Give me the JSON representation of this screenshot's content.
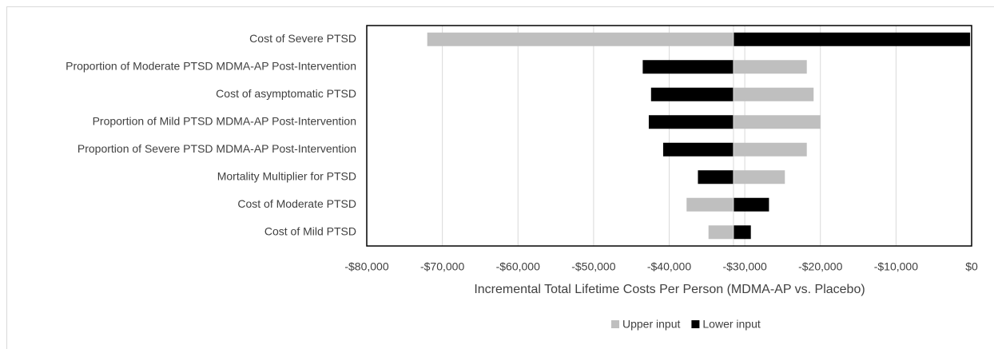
{
  "chart_data": {
    "type": "tornado",
    "x_label": "Incremental Total Lifetime Costs Per Person (MDMA-AP vs. Placebo)",
    "categories": [
      "Cost of Severe PTSD",
      "Proportion of Moderate PTSD MDMA-AP Post-Intervention",
      "Cost of asymptomatic PTSD",
      "Proportion of Mild PTSD MDMA-AP Post-Intervention",
      "Proportion of Severe PTSD MDMA-AP Post-Intervention",
      "Mortality Multiplier for PTSD",
      "Cost of Moderate PTSD",
      "Cost of Mild PTSD"
    ],
    "base": -31500,
    "series": [
      {
        "name": "Upper input",
        "color": "#bfbfbf",
        "values": [
          -72000,
          -21800,
          -20900,
          -20000,
          -21800,
          -24700,
          -37700,
          -34800
        ]
      },
      {
        "name": "Lower input",
        "color": "#000000",
        "values": [
          -200,
          -43500,
          -42400,
          -42700,
          -40800,
          -36200,
          -26800,
          -29200
        ]
      }
    ],
    "xlim": [
      -80000,
      0
    ],
    "xticks": [
      {
        "value": -80000,
        "label": "-$80,000"
      },
      {
        "value": -70000,
        "label": "-$70,000"
      },
      {
        "value": -60000,
        "label": "-$60,000"
      },
      {
        "value": -50000,
        "label": "-$50,000"
      },
      {
        "value": -40000,
        "label": "-$40,000"
      },
      {
        "value": -30000,
        "label": "-$30,000"
      },
      {
        "value": -20000,
        "label": "-$20,000"
      },
      {
        "value": -10000,
        "label": "-$10,000"
      },
      {
        "value": 0,
        "label": "$0"
      }
    ],
    "grid": true,
    "legend": "bottom"
  }
}
